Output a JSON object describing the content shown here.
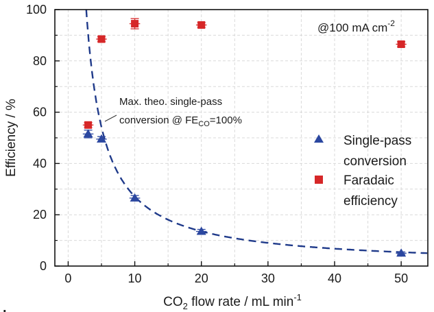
{
  "chart_data": {
    "type": "scatter",
    "title": "",
    "xlabel_parts": [
      "CO",
      "2",
      " flow rate / mL min",
      "-1"
    ],
    "ylabel": "Efficiency / %",
    "xlim": [
      -2,
      54
    ],
    "ylim": [
      0,
      100
    ],
    "xticks": [
      0,
      10,
      20,
      30,
      40,
      50
    ],
    "yticks": [
      0,
      20,
      40,
      60,
      80,
      100
    ],
    "grid": true,
    "series": [
      {
        "name": "Faradaic efficiency",
        "legend_lines": [
          "Faradaic",
          "efficiency"
        ],
        "marker": "square",
        "color": "#d62728",
        "x": [
          3,
          5,
          10,
          20,
          50
        ],
        "y": [
          55,
          88.5,
          94.5,
          94,
          86.5
        ],
        "xerr": [
          0.8,
          0.8,
          0.8,
          0.8,
          0.8
        ],
        "yerr": [
          1,
          1,
          2,
          1,
          1
        ]
      },
      {
        "name": "Single-pass conversion",
        "legend_lines": [
          "Single-pass",
          "conversion"
        ],
        "marker": "triangle",
        "color": "#2b47a0",
        "x": [
          3,
          5,
          10,
          20,
          50
        ],
        "y": [
          51.5,
          49.5,
          26.5,
          13.5,
          5
        ],
        "xerr": [
          0.8,
          0.8,
          0.8,
          0.8,
          0.8
        ],
        "yerr": [
          1.5,
          1,
          1,
          0.8,
          0.5
        ]
      }
    ],
    "theory_curve": {
      "name": "Max. theo. single-pass conversion",
      "style": "dashed",
      "color": "#1f3a8a",
      "coefficient": 271,
      "x_start": 2.71,
      "x_end": 54
    },
    "annotation_parts": [
      "Max. theo. single-pass",
      "conversion @ FE",
      "CO",
      "=100%"
    ],
    "condition_parts": [
      "@100 mA cm",
      "-2"
    ],
    "legend_location": "right"
  },
  "corner_label": "b"
}
